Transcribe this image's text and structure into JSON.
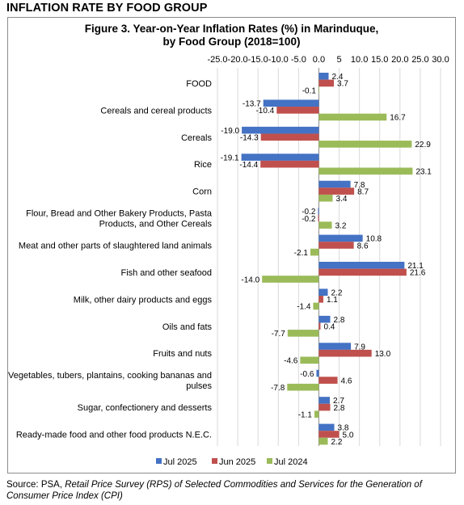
{
  "heading": "INFLATION RATE BY FOOD GROUP",
  "source": {
    "prefix": "Source: PSA, ",
    "italic": "Retail Price Survey (RPS) of Selected Commodities and Services for the Generation of Consumer Price Index (CPI)"
  },
  "colors": {
    "jul2025": "#4472C4",
    "jun2025": "#C0504D",
    "jul2024": "#9BBB59"
  },
  "chart_data": {
    "type": "bar",
    "orientation": "horizontal",
    "title": "Figure 3. Year-on-Year Inflation Rates (%) in Marinduque,",
    "subtitle": "by Food Group (2018=100)",
    "xlim": [
      -25.0,
      30.0
    ],
    "xticks": [
      -25.0,
      -20.0,
      -15.0,
      -10.0,
      -5.0,
      0.0,
      5.0,
      10.0,
      15.0,
      20.0,
      25.0,
      30.0
    ],
    "xtick_labels": [
      "-25.0",
      "-20.0",
      "-15.0",
      "-10.0",
      "-5.0",
      "0.0",
      "5",
      "10.0",
      "15.0",
      "20.0",
      "25.0",
      "30.0"
    ],
    "grid": true,
    "legend_position": "bottom",
    "categories": [
      [
        "FOOD"
      ],
      [
        "Cereals and cereal products"
      ],
      [
        "Cereals"
      ],
      [
        "Rice"
      ],
      [
        "Corn"
      ],
      [
        "Flour, Bread and Other Bakery Products, Pasta",
        "Products,  and Other Cereals"
      ],
      [
        "Meat and other parts of slaughtered land animals"
      ],
      [
        "Fish and other seafood"
      ],
      [
        "Milk, other dairy products and eggs"
      ],
      [
        "Oils and fats"
      ],
      [
        "Fruits and nuts"
      ],
      [
        "Vegetables, tubers, plantains, cooking bananas and",
        "pulses"
      ],
      [
        "Sugar, confectionery and desserts"
      ],
      [
        "Ready-made food and other food products N.E.C."
      ]
    ],
    "series": [
      {
        "name": "Jul 2025",
        "values": [
          2.4,
          -13.7,
          -19.0,
          -19.1,
          7.8,
          -0.2,
          10.8,
          21.1,
          2.2,
          2.8,
          7.9,
          -0.6,
          2.7,
          3.8
        ]
      },
      {
        "name": "Jun 2025",
        "values": [
          3.7,
          -10.4,
          -14.3,
          -14.4,
          8.7,
          -0.2,
          8.6,
          21.6,
          1.1,
          0.4,
          13.0,
          4.6,
          2.8,
          5.0
        ]
      },
      {
        "name": "Jul 2024",
        "values": [
          -0.1,
          16.7,
          22.9,
          23.1,
          3.4,
          3.2,
          -2.1,
          -14.0,
          -1.4,
          -7.7,
          -4.6,
          -7.8,
          -1.1,
          2.2
        ]
      }
    ]
  }
}
